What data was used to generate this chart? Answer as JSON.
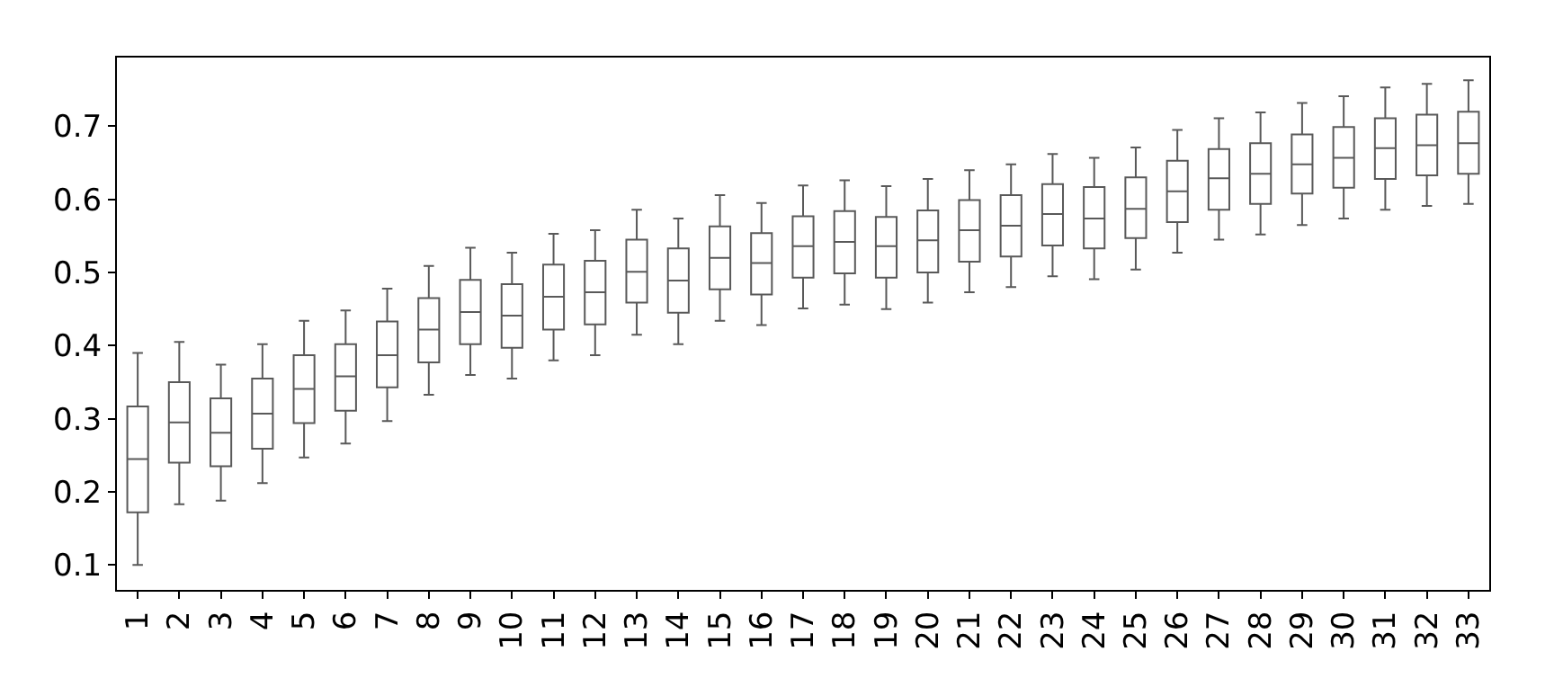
{
  "chart_data": {
    "type": "box",
    "color": "#595959",
    "grid": false,
    "ylim": [
      0.066,
      0.794
    ],
    "yticks": [
      0.1,
      0.2,
      0.3,
      0.4,
      0.5,
      0.6,
      0.7
    ],
    "categories": [
      "1",
      "2",
      "3",
      "4",
      "5",
      "6",
      "7",
      "8",
      "9",
      "10",
      "11",
      "12",
      "13",
      "14",
      "15",
      "16",
      "17",
      "18",
      "19",
      "20",
      "21",
      "22",
      "23",
      "24",
      "25",
      "26",
      "27",
      "28",
      "29",
      "30",
      "31",
      "32",
      "33"
    ],
    "boxes": [
      {
        "low": 0.1,
        "q1": 0.172,
        "median": 0.245,
        "q3": 0.317,
        "high": 0.39
      },
      {
        "low": 0.183,
        "q1": 0.24,
        "median": 0.295,
        "q3": 0.35,
        "high": 0.405
      },
      {
        "low": 0.188,
        "q1": 0.235,
        "median": 0.281,
        "q3": 0.328,
        "high": 0.374
      },
      {
        "low": 0.212,
        "q1": 0.259,
        "median": 0.307,
        "q3": 0.355,
        "high": 0.402
      },
      {
        "low": 0.247,
        "q1": 0.294,
        "median": 0.341,
        "q3": 0.387,
        "high": 0.434
      },
      {
        "low": 0.266,
        "q1": 0.311,
        "median": 0.358,
        "q3": 0.402,
        "high": 0.448
      },
      {
        "low": 0.297,
        "q1": 0.343,
        "median": 0.387,
        "q3": 0.433,
        "high": 0.478
      },
      {
        "low": 0.333,
        "q1": 0.377,
        "median": 0.422,
        "q3": 0.465,
        "high": 0.509
      },
      {
        "low": 0.36,
        "q1": 0.402,
        "median": 0.446,
        "q3": 0.49,
        "high": 0.534
      },
      {
        "low": 0.355,
        "q1": 0.397,
        "median": 0.441,
        "q3": 0.484,
        "high": 0.527
      },
      {
        "low": 0.38,
        "q1": 0.422,
        "median": 0.467,
        "q3": 0.511,
        "high": 0.553
      },
      {
        "low": 0.387,
        "q1": 0.429,
        "median": 0.473,
        "q3": 0.516,
        "high": 0.558
      },
      {
        "low": 0.415,
        "q1": 0.459,
        "median": 0.501,
        "q3": 0.545,
        "high": 0.586
      },
      {
        "low": 0.402,
        "q1": 0.445,
        "median": 0.489,
        "q3": 0.533,
        "high": 0.574
      },
      {
        "low": 0.434,
        "q1": 0.477,
        "median": 0.52,
        "q3": 0.563,
        "high": 0.606
      },
      {
        "low": 0.428,
        "q1": 0.47,
        "median": 0.513,
        "q3": 0.554,
        "high": 0.595
      },
      {
        "low": 0.451,
        "q1": 0.493,
        "median": 0.536,
        "q3": 0.577,
        "high": 0.619
      },
      {
        "low": 0.456,
        "q1": 0.499,
        "median": 0.542,
        "q3": 0.584,
        "high": 0.626
      },
      {
        "low": 0.45,
        "q1": 0.493,
        "median": 0.536,
        "q3": 0.576,
        "high": 0.618
      },
      {
        "low": 0.459,
        "q1": 0.5,
        "median": 0.544,
        "q3": 0.585,
        "high": 0.628
      },
      {
        "low": 0.473,
        "q1": 0.515,
        "median": 0.558,
        "q3": 0.599,
        "high": 0.64
      },
      {
        "low": 0.48,
        "q1": 0.522,
        "median": 0.564,
        "q3": 0.606,
        "high": 0.648
      },
      {
        "low": 0.495,
        "q1": 0.537,
        "median": 0.58,
        "q3": 0.621,
        "high": 0.662
      },
      {
        "low": 0.491,
        "q1": 0.533,
        "median": 0.574,
        "q3": 0.617,
        "high": 0.657
      },
      {
        "low": 0.504,
        "q1": 0.547,
        "median": 0.587,
        "q3": 0.63,
        "high": 0.671
      },
      {
        "low": 0.527,
        "q1": 0.569,
        "median": 0.611,
        "q3": 0.653,
        "high": 0.695
      },
      {
        "low": 0.545,
        "q1": 0.586,
        "median": 0.629,
        "q3": 0.669,
        "high": 0.711
      },
      {
        "low": 0.552,
        "q1": 0.594,
        "median": 0.635,
        "q3": 0.677,
        "high": 0.719
      },
      {
        "low": 0.565,
        "q1": 0.608,
        "median": 0.648,
        "q3": 0.689,
        "high": 0.732
      },
      {
        "low": 0.574,
        "q1": 0.616,
        "median": 0.657,
        "q3": 0.699,
        "high": 0.741
      },
      {
        "low": 0.586,
        "q1": 0.628,
        "median": 0.67,
        "q3": 0.711,
        "high": 0.753
      },
      {
        "low": 0.591,
        "q1": 0.633,
        "median": 0.674,
        "q3": 0.716,
        "high": 0.758
      },
      {
        "low": 0.594,
        "q1": 0.635,
        "median": 0.677,
        "q3": 0.72,
        "high": 0.763
      }
    ]
  }
}
